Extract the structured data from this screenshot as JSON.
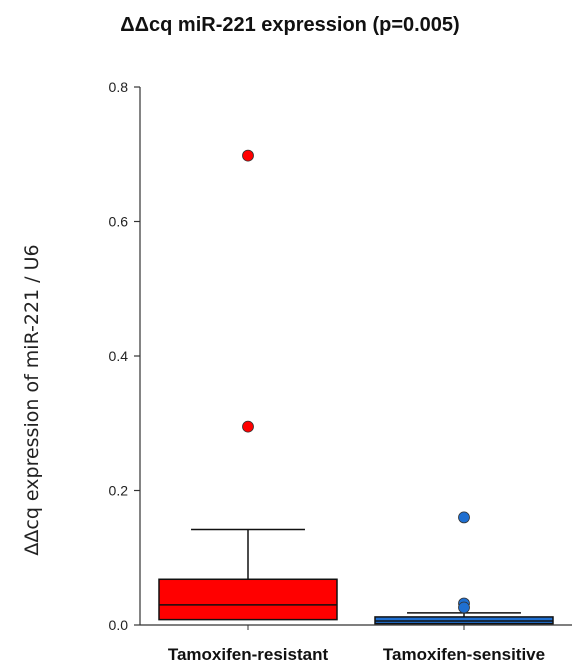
{
  "chart_data": {
    "type": "box",
    "title": "ΔΔcq miR-221 expression (p=0.005)",
    "xlabel": "",
    "ylabel": "ΔΔcq expression of miR-221 / U6",
    "ylim": [
      0,
      0.8
    ],
    "yticks": [
      "0.0",
      "0.2",
      "0.4",
      "0.6",
      "0.8"
    ],
    "categories": [
      "Tamoxifen-resistant",
      "Tamoxifen-sensitive"
    ],
    "boxes": [
      {
        "category": "Tamoxifen-resistant",
        "whisker_low": 0.008,
        "q1": 0.008,
        "median": 0.03,
        "q3": 0.068,
        "whisker_high": 0.142,
        "outliers": [
          0.698,
          0.295
        ],
        "color": "#ff0000"
      },
      {
        "category": "Tamoxifen-sensitive",
        "whisker_low": 0.002,
        "q1": 0.002,
        "median": 0.006,
        "q3": 0.012,
        "whisker_high": 0.018,
        "outliers": [
          0.16,
          0.032,
          0.026
        ],
        "color": "#1f6fd1"
      }
    ],
    "grid": false,
    "legend": "none"
  }
}
